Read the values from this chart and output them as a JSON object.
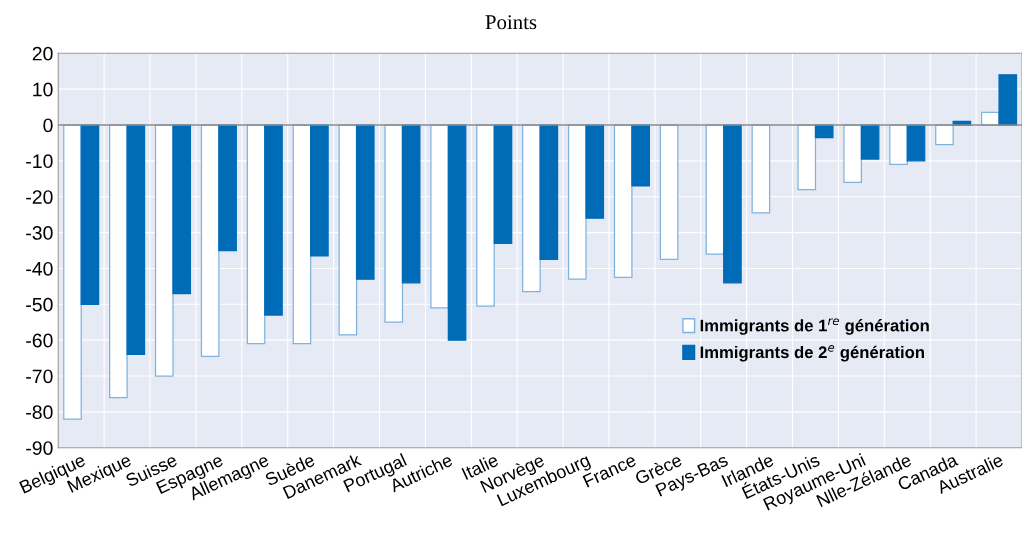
{
  "chart_data": {
    "type": "bar",
    "title": "Points",
    "categories": [
      "Belgique",
      "Mexique",
      "Suisse",
      "Espagne",
      "Allemagne",
      "Suède",
      "Danemark",
      "Portugal",
      "Autriche",
      "Italie",
      "Norvège",
      "Luxembourg",
      "France",
      "Grèce",
      "Pays-Bas",
      "Irlande",
      "États-Unis",
      "Royaume-Uni",
      "Nlle-Zélande",
      "Canada",
      "Australie"
    ],
    "series": [
      {
        "name": "Immigrants de 1$^{re}$ génération",
        "color": "#ffffff",
        "values": [
          -82,
          -76,
          -70,
          -64.5,
          -61,
          -61,
          -58.5,
          -55,
          -51,
          -50.5,
          -46.5,
          -43,
          -42.5,
          -37.5,
          -36,
          -24.5,
          -18,
          -16,
          -11,
          -5.5,
          3.5
        ]
      },
      {
        "name": "Immigrants de 2$^{e}$ génération",
        "color": "#006bb6",
        "values": [
          -50,
          -64,
          -47,
          -35,
          -53,
          -36.5,
          -43,
          -44,
          -60,
          -33,
          -37.5,
          -26,
          -17,
          null,
          -44,
          null,
          -3.5,
          -9.5,
          -10,
          1,
          14
        ]
      }
    ],
    "ylim": [
      -90,
      20
    ],
    "yticks": [
      -90,
      -80,
      -70,
      -60,
      -50,
      -40,
      -30,
      -20,
      -10,
      0,
      10,
      20
    ],
    "grid": true,
    "legend": "lower right"
  }
}
